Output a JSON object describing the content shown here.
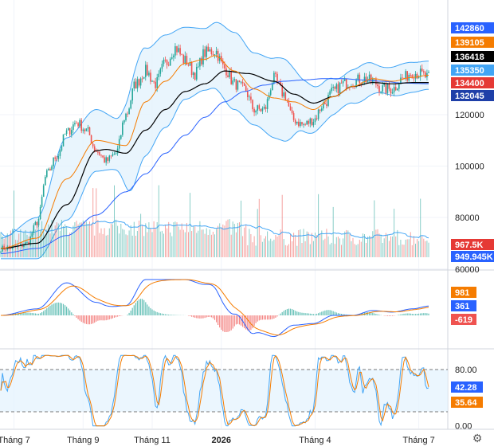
{
  "chart_data": [
    {
      "type": "candlestick",
      "panel": "price",
      "title": "",
      "ylim": [
        60000,
        150000
      ],
      "y_ticks": [
        {
          "value": 120000,
          "label": "120000"
        },
        {
          "value": 100000,
          "label": "100000"
        },
        {
          "value": 80000,
          "label": "80000"
        },
        {
          "value": 60000,
          "label": "60000"
        }
      ],
      "anchors": {
        "close": [
          [
            0,
            68000
          ],
          [
            10,
            68500
          ],
          [
            16,
            70000
          ],
          [
            22,
            78000
          ],
          [
            28,
            97000
          ],
          [
            34,
            104000
          ],
          [
            40,
            113000
          ],
          [
            46,
            117000
          ],
          [
            52,
            114000
          ],
          [
            58,
            106000
          ],
          [
            64,
            102000
          ],
          [
            70,
            105000
          ],
          [
            76,
            120000
          ],
          [
            82,
            132000
          ],
          [
            88,
            137000
          ],
          [
            94,
            132000
          ],
          [
            100,
            140000
          ],
          [
            106,
            146000
          ],
          [
            112,
            141000
          ],
          [
            118,
            136000
          ],
          [
            124,
            144000
          ],
          [
            130,
            145000
          ],
          [
            136,
            138000
          ],
          [
            142,
            132000
          ],
          [
            148,
            130000
          ],
          [
            154,
            122000
          ],
          [
            160,
            122000
          ],
          [
            166,
            134000
          ],
          [
            172,
            128000
          ],
          [
            178,
            118000
          ],
          [
            184,
            116000
          ],
          [
            190,
            118000
          ],
          [
            196,
            124000
          ],
          [
            202,
            129000
          ],
          [
            208,
            132000
          ],
          [
            214,
            133000
          ],
          [
            220,
            134000
          ],
          [
            226,
            133000
          ],
          [
            232,
            130000
          ],
          [
            238,
            130000
          ],
          [
            244,
            134000
          ],
          [
            250,
            136500
          ],
          [
            254,
            136000
          ],
          [
            260,
            134400
          ]
        ],
        "ma20": [
          [
            0,
            68000
          ],
          [
            22,
            72000
          ],
          [
            40,
            95000
          ],
          [
            58,
            110000
          ],
          [
            76,
            108000
          ],
          [
            88,
            125000
          ],
          [
            100,
            133000
          ],
          [
            112,
            140000
          ],
          [
            124,
            141500
          ],
          [
            130,
            143000
          ],
          [
            142,
            137000
          ],
          [
            154,
            130000
          ],
          [
            166,
            126500
          ],
          [
            178,
            125000
          ],
          [
            190,
            122000
          ],
          [
            202,
            127000
          ],
          [
            214,
            131000
          ],
          [
            226,
            134000
          ],
          [
            238,
            133000
          ],
          [
            250,
            134500
          ],
          [
            260,
            135350
          ]
        ],
        "ma50": [
          [
            0,
            68000
          ],
          [
            22,
            70000
          ],
          [
            40,
            85000
          ],
          [
            58,
            106000
          ],
          [
            64,
            106500
          ],
          [
            76,
            105000
          ],
          [
            88,
            114000
          ],
          [
            100,
            122000
          ],
          [
            112,
            129000
          ],
          [
            124,
            132000
          ],
          [
            136,
            137000
          ],
          [
            150,
            136000
          ],
          [
            166,
            133000
          ],
          [
            178,
            128000
          ],
          [
            190,
            124500
          ],
          [
            202,
            127000
          ],
          [
            214,
            131000
          ],
          [
            226,
            132500
          ],
          [
            238,
            132000
          ],
          [
            250,
            132500
          ],
          [
            260,
            132500
          ]
        ],
        "ma200": [
          [
            0,
            66000
          ],
          [
            22,
            68000
          ],
          [
            40,
            73000
          ],
          [
            58,
            81000
          ],
          [
            76,
            90000
          ],
          [
            88,
            97000
          ],
          [
            100,
            105000
          ],
          [
            112,
            112000
          ],
          [
            124,
            119000
          ],
          [
            136,
            125000
          ],
          [
            148,
            129000
          ],
          [
            160,
            131500
          ],
          [
            172,
            133000
          ],
          [
            184,
            133500
          ],
          [
            196,
            134000
          ],
          [
            208,
            134000
          ],
          [
            220,
            133500
          ],
          [
            232,
            133000
          ],
          [
            244,
            132300
          ],
          [
            260,
            132045
          ]
        ]
      },
      "bb_width": [
        [
          0,
          4000
        ],
        [
          22,
          8000
        ],
        [
          40,
          16000
        ],
        [
          58,
          12000
        ],
        [
          70,
          10000
        ],
        [
          82,
          22000
        ],
        [
          100,
          18000
        ],
        [
          112,
          14000
        ],
        [
          124,
          12000
        ],
        [
          142,
          15000
        ],
        [
          154,
          14000
        ],
        [
          172,
          16000
        ],
        [
          184,
          10000
        ],
        [
          196,
          8000
        ],
        [
          208,
          6000
        ],
        [
          220,
          7000
        ],
        [
          232,
          5000
        ],
        [
          244,
          6000
        ],
        [
          260,
          5500
        ]
      ],
      "price_badges": [
        {
          "value": 142860,
          "label": "142860",
          "color": "#2962ff",
          "text_color": "#ffffff"
        },
        {
          "value": 139105,
          "label": "139105",
          "color": "#f57c00",
          "text_color": "#ffffff"
        },
        {
          "value": 136418,
          "label": "136418",
          "color": "#000000",
          "text_color": "#ffffff"
        },
        {
          "value": 135350,
          "label": "135350",
          "color": "#42a5f5",
          "text_color": "#ffffff"
        },
        {
          "value": 134400,
          "label": "134400",
          "color": "#e53935",
          "text_color": "#ffffff"
        },
        {
          "value": 132045,
          "label": "132045",
          "color": "#1e3fa8",
          "text_color": "#ffffff"
        }
      ]
    },
    {
      "type": "bar",
      "panel": "volume",
      "badges": [
        {
          "label": "967.5K",
          "color": "#e53935",
          "text_color": "#ffffff"
        },
        {
          "label": "949.945K",
          "color": "#2962ff",
          "text_color": "#ffffff"
        }
      ]
    },
    {
      "type": "line",
      "panel": "macd",
      "badges": [
        {
          "label": "981",
          "color": "#f57c00",
          "text_color": "#ffffff"
        },
        {
          "label": "361",
          "color": "#2962ff",
          "text_color": "#ffffff"
        },
        {
          "label": "-619",
          "color": "#ef5350",
          "text_color": "#ffffff"
        }
      ]
    },
    {
      "type": "line",
      "panel": "stochastic",
      "ylim": [
        0,
        100
      ],
      "y_ticks": [
        {
          "value": 80,
          "label": "80.00"
        },
        {
          "value": 0,
          "label": "0.00"
        }
      ],
      "band": [
        20,
        80
      ],
      "badges": [
        {
          "value": 42.28,
          "label": "42.28",
          "color": "#2962ff",
          "text_color": "#ffffff"
        },
        {
          "value": 35.64,
          "label": "35.64",
          "color": "#f57c00",
          "text_color": "#ffffff"
        }
      ]
    }
  ],
  "x_axis": {
    "labels": [
      {
        "label": "Tháng 7",
        "bar": 8,
        "bold": false
      },
      {
        "label": "Tháng 9",
        "bar": 50,
        "bold": false
      },
      {
        "label": "Tháng 11",
        "bar": 92,
        "bold": false
      },
      {
        "label": "2026",
        "bar": 134,
        "bold": true
      },
      {
        "label": "Tháng 4",
        "bar": 191,
        "bold": false
      },
      {
        "label": "Tháng 7",
        "bar": 254,
        "bold": false
      }
    ]
  },
  "colors": {
    "up": "#26a69a",
    "down": "#ef5350",
    "bb": "#42a5f5",
    "bb_fill": "#e3f2fd",
    "ma20": "#f57c00",
    "ma50": "#000000",
    "ma200": "#2962ff",
    "macd": "#2962ff",
    "signal": "#f57c00",
    "stoch_k": "#42a5f5",
    "stoch_d": "#f57c00",
    "grid": "#f0f3fa",
    "divider": "#d1d4dc"
  },
  "settings": {
    "icon": "gear-icon"
  }
}
